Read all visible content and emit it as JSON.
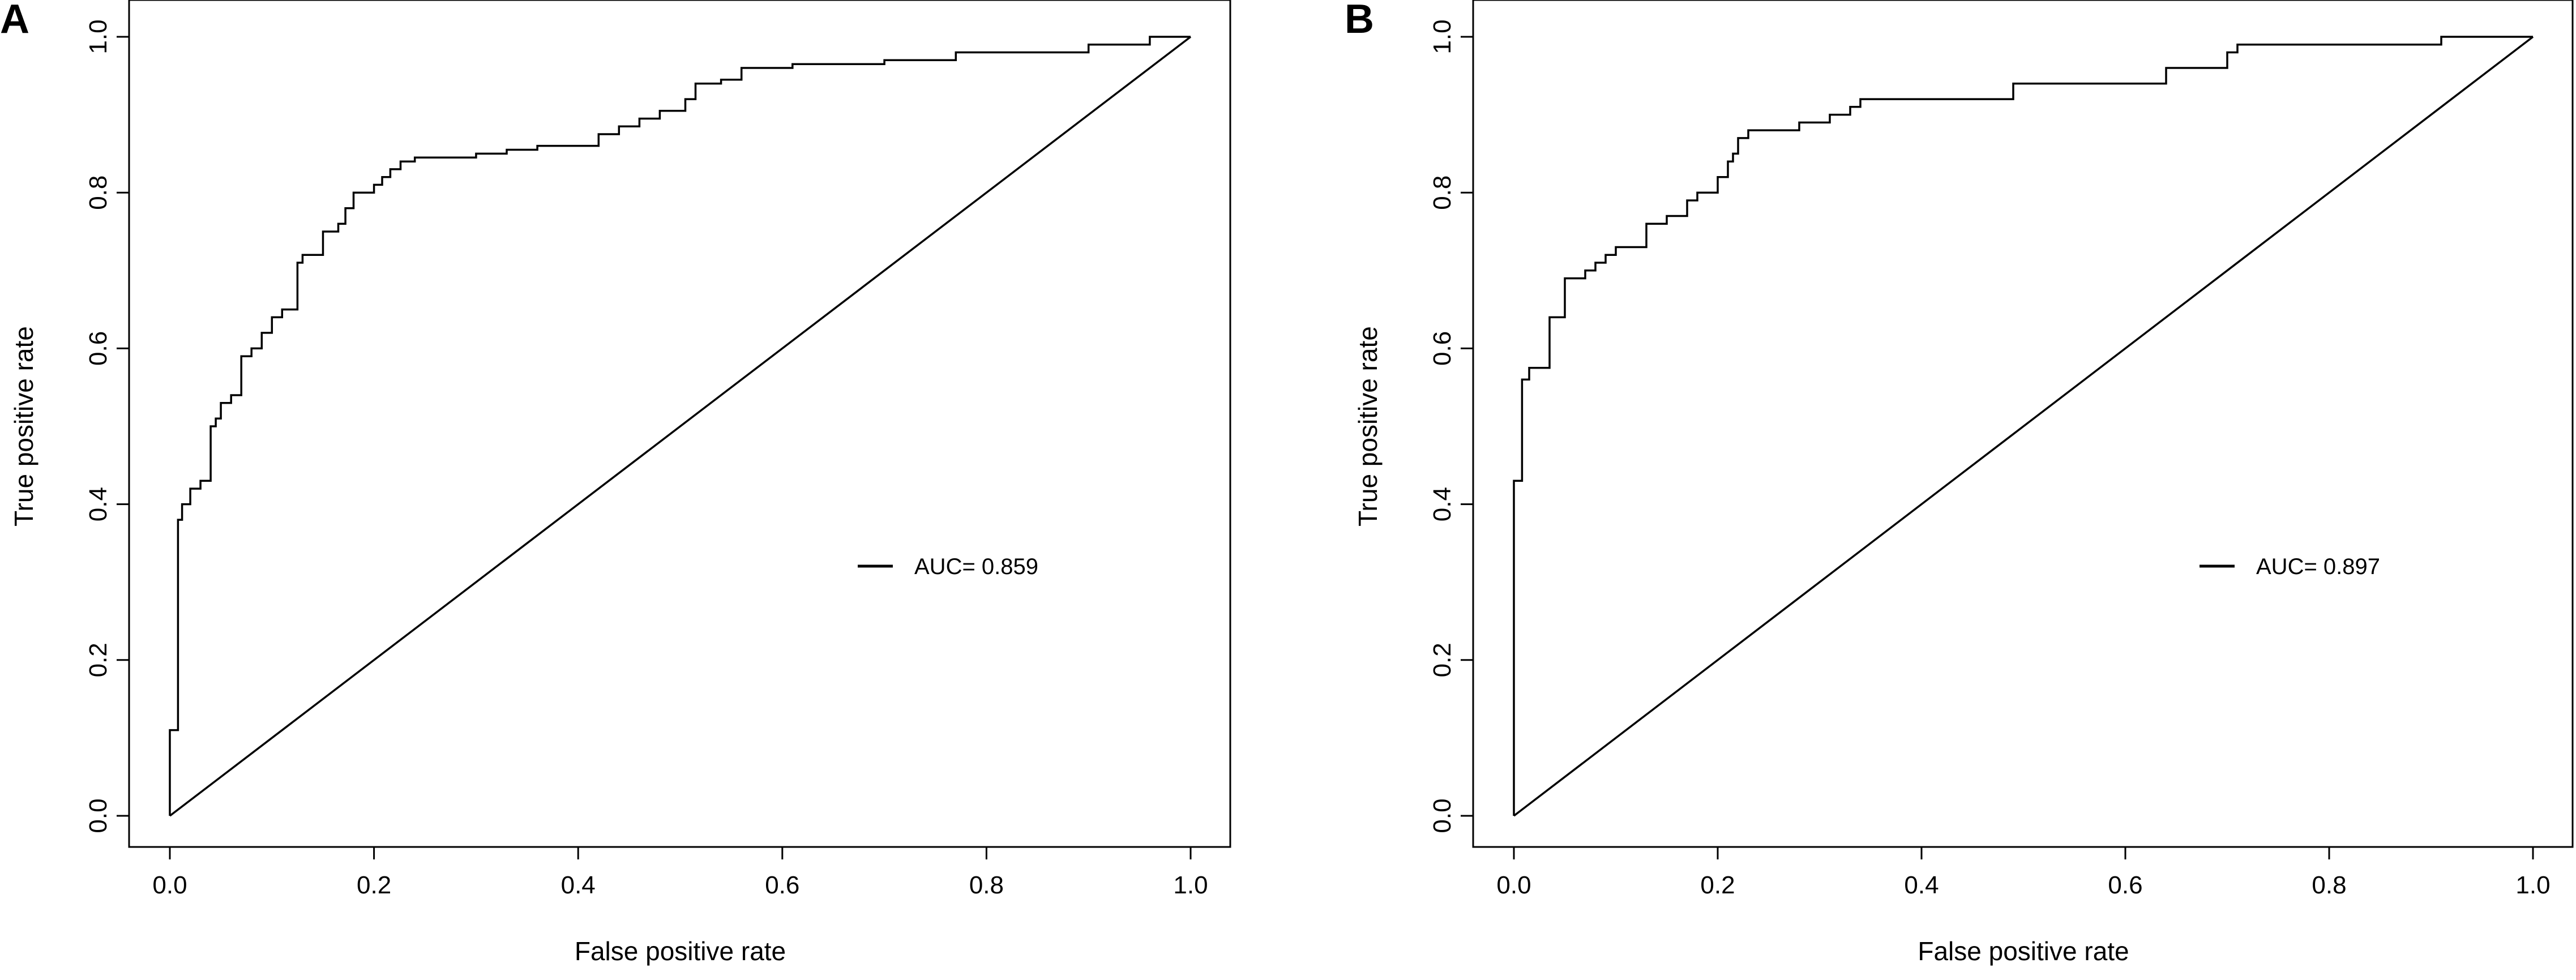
{
  "chart_data": [
    {
      "type": "line",
      "panel": "A",
      "title": "",
      "xlabel": "False positive rate",
      "ylabel": "True positive rate",
      "xlim": [
        0,
        1
      ],
      "ylim": [
        0,
        1
      ],
      "xticks": [
        "0.0",
        "0.2",
        "0.4",
        "0.6",
        "0.8",
        "1.0"
      ],
      "yticks": [
        "0.0",
        "0.2",
        "0.4",
        "0.6",
        "0.8",
        "1.0"
      ],
      "grid": false,
      "legend": {
        "position": "right",
        "entries": [
          "AUC= 0.859"
        ]
      },
      "series": [
        {
          "x": [
            0.0,
            0.0,
            0.008,
            0.008,
            0.012,
            0.012,
            0.02,
            0.02,
            0.03,
            0.03,
            0.04,
            0.04,
            0.045,
            0.045,
            0.05,
            0.05,
            0.06,
            0.06,
            0.07,
            0.07,
            0.08,
            0.08,
            0.09,
            0.09,
            0.1,
            0.1,
            0.11,
            0.11,
            0.125,
            0.125,
            0.13,
            0.13,
            0.15,
            0.15,
            0.165,
            0.165,
            0.172,
            0.172,
            0.18,
            0.18,
            0.2,
            0.2,
            0.208,
            0.208,
            0.216,
            0.216,
            0.226,
            0.226,
            0.24,
            0.24,
            0.3,
            0.3,
            0.33,
            0.33,
            0.36,
            0.36,
            0.42,
            0.42,
            0.44,
            0.44,
            0.46,
            0.46,
            0.48,
            0.48,
            0.505,
            0.505,
            0.515,
            0.515,
            0.54,
            0.54,
            0.56,
            0.56,
            0.61,
            0.61,
            0.7,
            0.7,
            0.77,
            0.77,
            0.9,
            0.9,
            0.96,
            0.96,
            0.99,
            1.0
          ],
          "y": [
            0.0,
            0.11,
            0.11,
            0.38,
            0.38,
            0.4,
            0.4,
            0.42,
            0.42,
            0.43,
            0.43,
            0.5,
            0.5,
            0.51,
            0.51,
            0.53,
            0.53,
            0.54,
            0.54,
            0.59,
            0.59,
            0.6,
            0.6,
            0.62,
            0.62,
            0.64,
            0.64,
            0.65,
            0.65,
            0.71,
            0.71,
            0.72,
            0.72,
            0.75,
            0.75,
            0.76,
            0.76,
            0.78,
            0.78,
            0.8,
            0.8,
            0.81,
            0.81,
            0.82,
            0.82,
            0.83,
            0.83,
            0.84,
            0.84,
            0.845,
            0.845,
            0.85,
            0.85,
            0.855,
            0.855,
            0.86,
            0.86,
            0.875,
            0.875,
            0.885,
            0.885,
            0.895,
            0.895,
            0.905,
            0.905,
            0.92,
            0.92,
            0.94,
            0.94,
            0.945,
            0.945,
            0.96,
            0.96,
            0.965,
            0.965,
            0.97,
            0.97,
            0.98,
            0.98,
            0.99,
            0.99,
            1.0,
            1.0,
            1.0
          ]
        }
      ]
    },
    {
      "type": "line",
      "panel": "B",
      "title": "",
      "xlabel": "False positive rate",
      "ylabel": "True positive rate",
      "xlim": [
        0,
        1
      ],
      "ylim": [
        0,
        1
      ],
      "xticks": [
        "0.0",
        "0.2",
        "0.4",
        "0.6",
        "0.8",
        "1.0"
      ],
      "yticks": [
        "0.0",
        "0.2",
        "0.4",
        "0.6",
        "0.8",
        "1.0"
      ],
      "grid": false,
      "legend": {
        "position": "right",
        "entries": [
          "AUC= 0.897"
        ]
      },
      "series": [
        {
          "x": [
            0.0,
            0.0,
            0.008,
            0.008,
            0.015,
            0.015,
            0.035,
            0.035,
            0.05,
            0.05,
            0.07,
            0.07,
            0.08,
            0.08,
            0.09,
            0.09,
            0.1,
            0.1,
            0.13,
            0.13,
            0.15,
            0.15,
            0.17,
            0.17,
            0.18,
            0.18,
            0.2,
            0.2,
            0.21,
            0.21,
            0.215,
            0.215,
            0.22,
            0.22,
            0.23,
            0.23,
            0.28,
            0.28,
            0.31,
            0.31,
            0.33,
            0.33,
            0.34,
            0.34,
            0.49,
            0.49,
            0.64,
            0.64,
            0.7,
            0.7,
            0.71,
            0.71,
            0.91,
            0.91,
            1.0
          ],
          "y": [
            0.0,
            0.43,
            0.43,
            0.56,
            0.56,
            0.575,
            0.575,
            0.64,
            0.64,
            0.69,
            0.69,
            0.7,
            0.7,
            0.71,
            0.71,
            0.72,
            0.72,
            0.73,
            0.73,
            0.76,
            0.76,
            0.77,
            0.77,
            0.79,
            0.79,
            0.8,
            0.8,
            0.82,
            0.82,
            0.84,
            0.84,
            0.85,
            0.85,
            0.87,
            0.87,
            0.88,
            0.88,
            0.89,
            0.89,
            0.9,
            0.9,
            0.91,
            0.91,
            0.92,
            0.92,
            0.94,
            0.94,
            0.96,
            0.96,
            0.98,
            0.98,
            0.99,
            0.99,
            1.0,
            1.0
          ]
        }
      ]
    }
  ]
}
